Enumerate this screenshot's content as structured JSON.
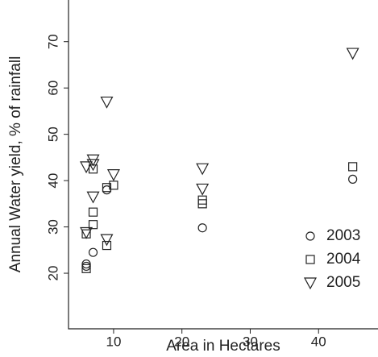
{
  "chart_data": {
    "type": "scatter",
    "x_label": "Area in Hectares",
    "y_label": "Annual Water yield, % of rainfall",
    "xlim": [
      3.4,
      48.7
    ],
    "ylim": [
      8,
      79
    ],
    "xticks": [
      10,
      20,
      30,
      40
    ],
    "yticks": [
      20,
      30,
      40,
      50,
      60,
      70
    ],
    "legend": "lower right",
    "series": [
      {
        "name": "2003",
        "color": "#222222",
        "marker": "circle",
        "x": [
          6,
          6,
          7,
          9,
          23,
          45
        ],
        "values": [
          21.5,
          22,
          24.5,
          38,
          29.8,
          40.3
        ]
      },
      {
        "name": "2004",
        "color": "#222222",
        "marker": "square",
        "x": [
          6,
          6,
          7,
          7,
          7,
          9,
          9,
          10,
          23,
          23,
          45
        ],
        "values": [
          21,
          28.5,
          30.5,
          33.2,
          42.5,
          26,
          38.5,
          39,
          35,
          35.8,
          43
        ]
      },
      {
        "name": "2005",
        "color": "#222222",
        "marker": "triangle-down",
        "x": [
          6,
          6,
          7,
          7,
          7,
          9,
          9,
          10,
          23,
          23,
          45
        ],
        "values": [
          43,
          28.8,
          44.5,
          43.5,
          36.5,
          57,
          27.3,
          41.3,
          42.6,
          38.2,
          67.5
        ]
      }
    ]
  }
}
